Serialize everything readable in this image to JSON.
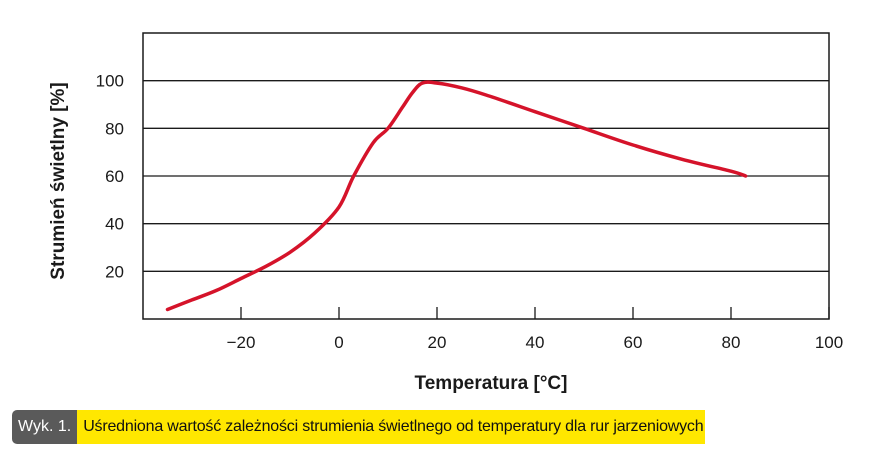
{
  "colors": {
    "line": "#d5132a",
    "frame": "#1a1a1a",
    "grid": "#1a1a1a"
  },
  "chart_data": {
    "type": "line",
    "xlabel": "Temperatura [°C]",
    "ylabel": "Strumień świetlny [%]",
    "xlim": [
      -40,
      100
    ],
    "ylim": [
      0,
      120
    ],
    "xticks": [
      -20,
      0,
      20,
      40,
      60,
      80,
      100
    ],
    "yticks": [
      20,
      40,
      60,
      80,
      100
    ],
    "xtick_labels": [
      "−20",
      "0",
      "20",
      "40",
      "60",
      "80",
      "100"
    ],
    "ytick_labels": [
      "20",
      "40",
      "60",
      "80",
      "100"
    ],
    "grid": "horizontal",
    "series": [
      {
        "values": [
          [
            -35,
            4
          ],
          [
            -30,
            8
          ],
          [
            -25,
            12
          ],
          [
            -20,
            17
          ],
          [
            -15,
            22
          ],
          [
            -10,
            28
          ],
          [
            -5,
            36
          ],
          [
            0,
            47
          ],
          [
            3,
            60
          ],
          [
            7,
            74
          ],
          [
            10,
            80
          ],
          [
            13,
            89
          ],
          [
            15,
            95
          ],
          [
            17,
            99
          ],
          [
            20,
            99
          ],
          [
            25,
            97
          ],
          [
            30,
            94
          ],
          [
            40,
            87
          ],
          [
            50,
            80
          ],
          [
            60,
            73
          ],
          [
            70,
            67
          ],
          [
            80,
            62
          ],
          [
            83,
            60
          ]
        ]
      }
    ]
  },
  "caption": {
    "number": "Wyk. 1.",
    "text": "Uśredniona wartość zależności strumienia świetlnego od temperatury dla rur jarzeniowych"
  }
}
